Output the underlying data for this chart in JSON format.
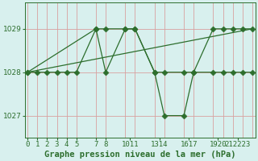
{
  "bg_color": "#d8f0ee",
  "grid_color": "#d8a0a0",
  "line_color": "#2d6e2d",
  "title": "Graphe pression niveau de la mer (hPa)",
  "ylim": [
    1026.5,
    1029.6
  ],
  "yticks": [
    1027,
    1028,
    1029
  ],
  "xlim": [
    -0.3,
    23.3
  ],
  "line1_x": [
    0,
    1,
    2,
    3,
    4,
    5,
    7,
    8,
    10,
    11,
    13,
    14,
    16,
    17,
    19,
    20,
    21,
    22,
    23
  ],
  "line1_y": [
    1028,
    1028,
    1028,
    1028,
    1028,
    1028,
    1029,
    1028,
    1029,
    1029,
    1028,
    1028,
    1028,
    1028,
    1028,
    1028,
    1028,
    1028,
    1028
  ],
  "line2_x": [
    0,
    7,
    8,
    10,
    11,
    13,
    14,
    16,
    17,
    19,
    20,
    21,
    22,
    23
  ],
  "line2_y": [
    1028,
    1029,
    1029,
    1029,
    1029,
    1028,
    1027,
    1027,
    1028,
    1029,
    1029,
    1029,
    1029,
    1029
  ],
  "line3_x": [
    0,
    23
  ],
  "line3_y": [
    1028,
    1029
  ],
  "xtick_pos": [
    0,
    1,
    2,
    3,
    4,
    5,
    7,
    8,
    10,
    11,
    13,
    14,
    16,
    17,
    19,
    20,
    21,
    22,
    23
  ],
  "xtick_labels_pos": [
    0,
    1,
    2,
    3,
    4,
    5,
    7,
    8,
    10.5,
    13.5,
    16.5,
    19.5,
    21.5
  ],
  "xtick_labels": [
    "0",
    "1",
    "2",
    "3",
    "4",
    "5",
    "7",
    "8",
    "1011",
    "1314",
    "1617",
    "1920",
    "212223"
  ],
  "title_fontsize": 7.5,
  "tick_fontsize": 6.5
}
